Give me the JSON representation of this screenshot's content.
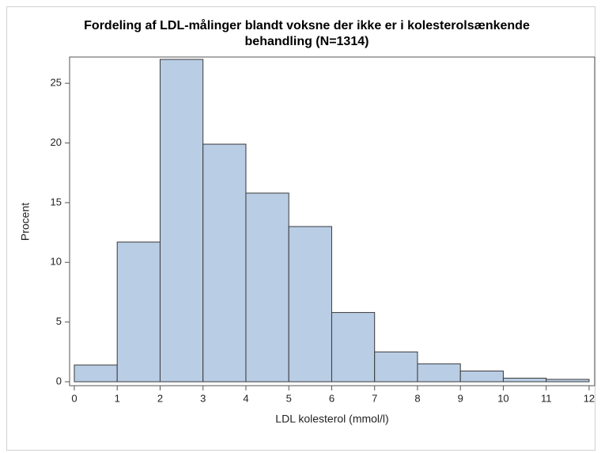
{
  "chart_data": {
    "type": "histogram",
    "title": [
      "Fordeling af LDL-målinger blandt voksne der ikke er i kolesterolsænkende",
      "behandling (N=1314)"
    ],
    "xlabel": "LDL kolesterol (mmol/l)",
    "ylabel": "Procent",
    "bins": [
      0,
      1,
      2,
      3,
      4,
      5,
      6,
      7,
      8,
      9,
      10,
      11,
      12
    ],
    "values": [
      1.4,
      11.7,
      27.0,
      19.9,
      15.8,
      13.0,
      5.8,
      2.5,
      1.5,
      0.9,
      0.3,
      0.2
    ],
    "color": "#b9cde5",
    "edgecolor": "#3a3a3a",
    "xlim": [
      -0.11,
      12.13
    ],
    "xticks": [
      0,
      1,
      2,
      3,
      4,
      5,
      6,
      7,
      8,
      9,
      10,
      11,
      12
    ],
    "ylim": [
      -0.33,
      27.2
    ],
    "yticks": [
      0,
      5,
      10,
      15,
      20,
      25
    ],
    "grid": false
  }
}
